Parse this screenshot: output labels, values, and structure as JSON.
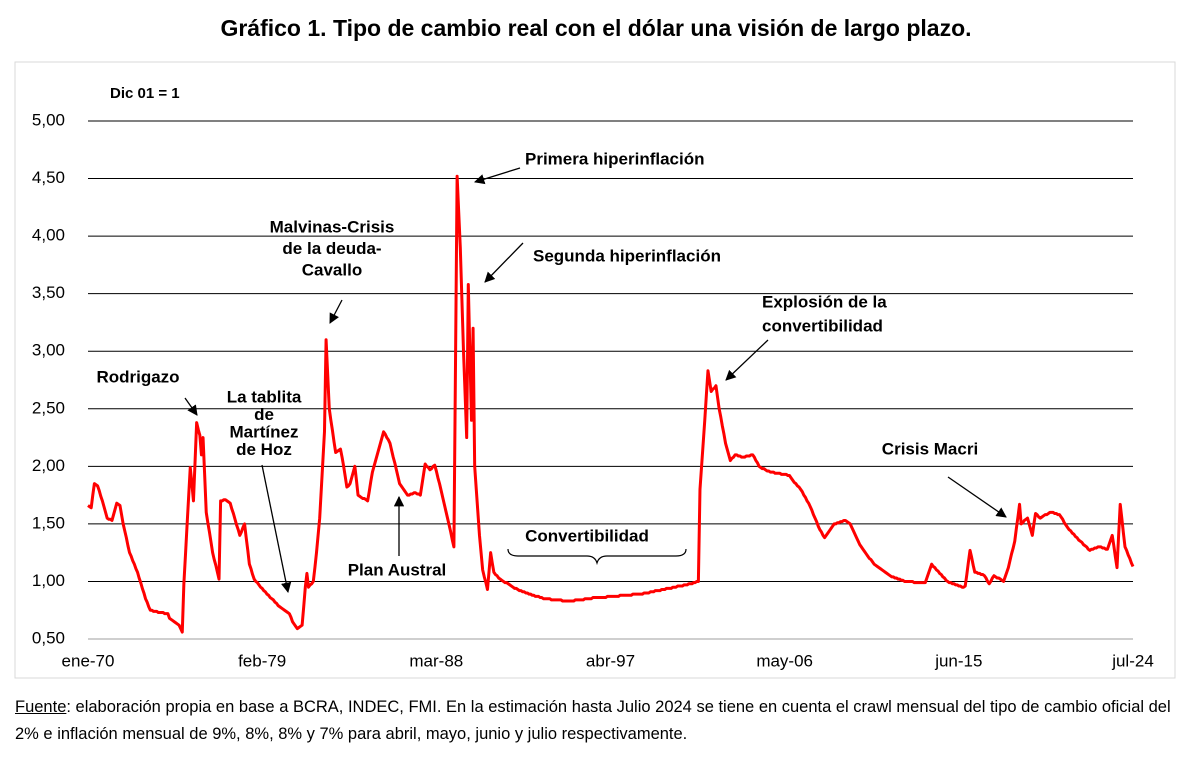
{
  "chart_data": {
    "type": "line",
    "title": "Gráfico 1. Tipo de cambio real con el dólar una visión de largo plazo.",
    "subtitle": "Dic 01 = 1",
    "color": "#ff0000",
    "grid": true,
    "ylim": [
      0.5,
      5.0
    ],
    "yticks": [
      {
        "value": 0.5,
        "label": "0,50"
      },
      {
        "value": 1.0,
        "label": "1,00"
      },
      {
        "value": 1.5,
        "label": "1,50"
      },
      {
        "value": 2.0,
        "label": "2,00"
      },
      {
        "value": 2.5,
        "label": "2,50"
      },
      {
        "value": 3.0,
        "label": "3,00"
      },
      {
        "value": 3.5,
        "label": "3,50"
      },
      {
        "value": 4.0,
        "label": "4,00"
      },
      {
        "value": 4.5,
        "label": "4,50"
      },
      {
        "value": 5.0,
        "label": "5,00"
      }
    ],
    "annotations": [
      [
        "Rodrigazo"
      ],
      [
        "La tablita",
        "de",
        "Martínez",
        "de Hoz"
      ],
      [
        "Malvinas-Crisis",
        "de la deuda-",
        "Cavallo"
      ],
      [
        "Primera hiperinflación"
      ],
      [
        "Segunda hiperinflación"
      ],
      [
        "Explosión de la",
        "convertibilidad"
      ],
      [
        "Plan Austral"
      ],
      [
        "Convertibilidad"
      ],
      [
        "Crisis Macri"
      ]
    ],
    "source_label": "Fuente",
    "source_text": ": elaboración propia en base a BCRA, INDEC, FMI. En la estimación hasta Julio 2024 se tiene en cuenta el crawl mensual del tipo de cambio oficial del 2% e inflación mensual de 9%, 8%, 8% y 7% para abril, mayo, junio y julio respectivamente.",
    "categories": [
      "ene-70",
      null,
      null,
      null,
      null,
      null,
      null,
      null,
      null,
      null,
      null,
      null,
      null,
      null,
      null,
      null,
      null,
      null,
      null,
      null,
      null,
      null,
      null,
      null,
      null,
      null,
      null,
      null,
      null,
      null,
      null,
      null,
      null,
      null,
      null,
      null,
      null,
      null,
      null,
      null,
      null,
      null,
      null,
      null,
      null,
      null,
      null,
      null,
      null,
      null,
      null,
      null,
      null,
      null,
      null,
      null,
      null,
      null,
      null,
      null,
      null,
      null,
      null,
      null,
      null,
      null,
      null,
      null,
      null,
      null,
      null,
      null,
      null,
      null,
      null,
      null,
      null,
      null,
      null,
      null,
      null,
      null,
      null,
      null,
      null,
      null,
      null,
      null,
      null,
      null,
      null,
      null,
      null,
      null,
      null,
      null,
      null,
      null,
      null,
      null,
      null,
      null,
      null,
      null,
      null,
      null,
      null,
      null,
      null,
      "feb-79",
      null,
      null,
      null,
      null,
      null,
      null,
      null,
      null,
      null,
      null,
      null,
      null,
      null,
      null,
      null,
      null,
      null,
      null,
      null,
      null,
      null,
      null,
      null,
      null,
      null,
      null,
      null,
      null,
      null,
      null,
      null,
      null,
      null,
      null,
      null,
      null,
      null,
      null,
      null,
      null,
      null,
      null,
      null,
      null,
      null,
      null,
      null,
      null,
      null,
      null,
      null,
      null,
      null,
      null,
      null,
      null,
      null,
      null,
      null,
      null,
      null,
      null,
      null,
      null,
      null,
      null,
      null,
      null,
      null,
      null,
      null,
      null,
      null,
      null,
      null,
      null,
      null,
      null,
      null,
      null,
      null,
      null,
      null,
      null,
      null,
      null,
      null,
      null,
      null,
      null,
      null,
      null,
      null,
      null,
      null,
      null,
      null,
      null,
      null,
      null,
      null,
      null,
      null,
      null,
      null,
      null,
      null,
      null,
      "mar-88",
      null,
      null,
      null,
      null,
      null,
      null,
      null,
      null,
      null,
      null,
      null,
      null,
      null,
      null,
      null,
      null,
      null,
      null,
      null,
      null,
      null,
      null,
      null,
      null,
      null,
      null,
      null,
      null,
      null,
      null,
      null,
      null,
      null,
      null,
      null,
      null,
      null,
      null,
      null,
      null,
      null,
      null,
      null,
      null,
      null,
      null,
      null,
      null,
      null,
      null,
      null,
      null,
      null,
      null,
      null,
      null,
      null,
      null,
      null,
      null,
      null,
      null,
      null,
      null,
      null,
      null,
      null,
      null,
      null,
      null,
      null,
      null,
      null,
      null,
      null,
      null,
      null,
      null,
      null,
      null,
      null,
      null,
      null,
      null,
      null,
      null,
      null,
      null,
      null,
      null,
      null,
      null,
      null,
      null,
      null,
      null,
      null,
      null,
      null,
      null,
      null,
      null,
      null,
      null,
      null,
      null,
      null,
      null,
      "abr-97",
      null,
      null,
      null,
      null,
      null,
      null,
      null,
      null,
      null,
      null,
      null,
      null,
      null,
      null,
      null,
      null,
      null,
      null,
      null,
      null,
      null,
      null,
      null,
      null,
      null,
      null,
      null,
      null,
      null,
      null,
      null,
      null,
      null,
      null,
      null,
      null,
      null,
      null,
      null,
      null,
      null,
      null,
      null,
      null,
      null,
      null,
      null,
      null,
      null,
      null,
      null,
      null,
      null,
      null,
      null,
      null,
      null,
      null,
      null,
      null,
      null,
      null,
      null,
      null,
      null,
      null,
      null,
      null,
      null,
      null,
      null,
      null,
      null,
      null,
      null,
      null,
      null,
      null,
      null,
      null,
      null,
      null,
      null,
      null,
      null,
      null,
      null,
      null,
      null,
      null,
      null,
      null,
      null,
      null,
      null,
      null,
      null,
      null,
      null,
      null,
      null,
      null,
      null,
      null,
      null,
      null,
      null,
      null,
      "may-06",
      null,
      null,
      null,
      null,
      null,
      null,
      null,
      null,
      null,
      null,
      null,
      null,
      null,
      null,
      null,
      null,
      null,
      null,
      null,
      null,
      null,
      null,
      null,
      null,
      null,
      null,
      null,
      null,
      null,
      null,
      null,
      null,
      null,
      null,
      null,
      null,
      null,
      null,
      null,
      null,
      null,
      null,
      null,
      null,
      null,
      null,
      null,
      null,
      null,
      null,
      null,
      null,
      null,
      null,
      null,
      null,
      null,
      null,
      null,
      null,
      null,
      null,
      null,
      null,
      null,
      null,
      null,
      null,
      null,
      null,
      null,
      null,
      null,
      null,
      null,
      null,
      null,
      null,
      null,
      null,
      null,
      null,
      null,
      null,
      null,
      null,
      null,
      null,
      null,
      null,
      null,
      null,
      null,
      null,
      null,
      null,
      null,
      null,
      null,
      null,
      null,
      null,
      null,
      null,
      null,
      null,
      null,
      null,
      "jun-15",
      null,
      null,
      null,
      null,
      null,
      null,
      null,
      null,
      null,
      null,
      null,
      null,
      null,
      null,
      null,
      null,
      null,
      null,
      null,
      null,
      null,
      null,
      null,
      null,
      null,
      null,
      null,
      null,
      null,
      null,
      null,
      null,
      null,
      null,
      null,
      null,
      null,
      null,
      null,
      null,
      null,
      null,
      null,
      null,
      null,
      null,
      null,
      null,
      null,
      null,
      null,
      null,
      null,
      null,
      null,
      null,
      null,
      null,
      null,
      null,
      null,
      null,
      null,
      null,
      null,
      null,
      null,
      null,
      null,
      null,
      null,
      null,
      null,
      null,
      null,
      null,
      null,
      null,
      null,
      null,
      null,
      null,
      null,
      null,
      null,
      null,
      null,
      null,
      null,
      null,
      null,
      null,
      null,
      null,
      null,
      null,
      null,
      null,
      null,
      null,
      null,
      null,
      null,
      null,
      null,
      null,
      null,
      null,
      "jul-24"
    ],
    "values": [
      1.66,
      1.65,
      1.64,
      1.75,
      1.85,
      1.84,
      1.83,
      1.79,
      1.74,
      1.7,
      1.65,
      1.6,
      1.55,
      1.54,
      1.54,
      1.53,
      1.58,
      1.63,
      1.68,
      1.67,
      1.66,
      1.58,
      1.5,
      1.44,
      1.38,
      1.31,
      1.25,
      1.22,
      1.18,
      1.15,
      1.11,
      1.08,
      1.03,
      0.99,
      0.94,
      0.9,
      0.85,
      0.82,
      0.78,
      0.75,
      0.75,
      0.74,
      0.74,
      0.74,
      0.73,
      0.73,
      0.73,
      0.73,
      0.72,
      0.72,
      0.72,
      0.68,
      0.67,
      0.66,
      0.65,
      0.64,
      0.63,
      0.62,
      0.59,
      0.56,
      0.98,
      1.23,
      1.49,
      1.74,
      1.99,
      1.85,
      1.7,
      2.04,
      2.38,
      2.32,
      2.27,
      2.1,
      2.25,
      1.93,
      1.6,
      1.51,
      1.43,
      1.34,
      1.25,
      1.19,
      1.14,
      1.08,
      1.02,
      1.7,
      1.7,
      1.71,
      1.71,
      1.7,
      1.69,
      1.68,
      1.63,
      1.59,
      1.54,
      1.49,
      1.45,
      1.4,
      1.43,
      1.47,
      1.5,
      1.38,
      1.27,
      1.15,
      1.11,
      1.06,
      1.02,
      1.0,
      0.99,
      0.97,
      0.95,
      0.94,
      0.92,
      0.91,
      0.89,
      0.88,
      0.86,
      0.85,
      0.84,
      0.82,
      0.81,
      0.79,
      0.78,
      0.77,
      0.76,
      0.75,
      0.74,
      0.73,
      0.72,
      0.69,
      0.65,
      0.63,
      0.61,
      0.59,
      0.6,
      0.61,
      0.62,
      0.78,
      0.95,
      1.07,
      0.95,
      0.97,
      0.98,
      1.0,
      1.12,
      1.25,
      1.4,
      1.55,
      1.8,
      2.05,
      2.3,
      3.1,
      2.8,
      2.5,
      2.4,
      2.31,
      2.21,
      2.12,
      2.13,
      2.14,
      2.15,
      2.08,
      2.0,
      1.91,
      1.82,
      1.83,
      1.85,
      1.9,
      1.95,
      2.0,
      1.88,
      1.75,
      1.74,
      1.73,
      1.72,
      1.72,
      1.71,
      1.7,
      1.78,
      1.87,
      1.95,
      2.0,
      2.05,
      2.1,
      2.15,
      2.2,
      2.25,
      2.3,
      2.28,
      2.25,
      2.23,
      2.2,
      2.14,
      2.08,
      2.03,
      1.97,
      1.91,
      1.85,
      1.83,
      1.81,
      1.79,
      1.77,
      1.75,
      1.75,
      1.76,
      1.76,
      1.77,
      1.77,
      1.76,
      1.76,
      1.75,
      1.84,
      1.93,
      2.02,
      2.0,
      1.99,
      1.97,
      1.98,
      2.0,
      2.01,
      1.96,
      1.9,
      1.85,
      1.79,
      1.73,
      1.67,
      1.61,
      1.55,
      1.49,
      1.43,
      1.36,
      1.3,
      2.9,
      4.52,
      4.21,
      3.9,
      3.45,
      3.0,
      2.63,
      2.25,
      3.58,
      2.99,
      2.4,
      3.2,
      2.0,
      1.8,
      1.6,
      1.4,
      1.25,
      1.1,
      1.04,
      0.99,
      0.93,
      1.09,
      1.25,
      1.16,
      1.08,
      1.06,
      1.05,
      1.03,
      1.02,
      1.01,
      1.0,
      0.99,
      0.99,
      0.98,
      0.97,
      0.96,
      0.95,
      0.94,
      0.94,
      0.93,
      0.92,
      0.92,
      0.91,
      0.91,
      0.9,
      0.9,
      0.89,
      0.89,
      0.88,
      0.88,
      0.87,
      0.87,
      0.87,
      0.86,
      0.86,
      0.85,
      0.85,
      0.85,
      0.85,
      0.85,
      0.84,
      0.84,
      0.84,
      0.84,
      0.84,
      0.84,
      0.84,
      0.83,
      0.83,
      0.83,
      0.83,
      0.83,
      0.83,
      0.83,
      0.83,
      0.84,
      0.84,
      0.84,
      0.84,
      0.84,
      0.84,
      0.85,
      0.85,
      0.85,
      0.85,
      0.85,
      0.86,
      0.86,
      0.86,
      0.86,
      0.86,
      0.86,
      0.86,
      0.86,
      0.86,
      0.87,
      0.87,
      0.87,
      0.87,
      0.87,
      0.87,
      0.87,
      0.87,
      0.88,
      0.88,
      0.88,
      0.88,
      0.88,
      0.88,
      0.88,
      0.88,
      0.89,
      0.89,
      0.89,
      0.89,
      0.89,
      0.89,
      0.89,
      0.9,
      0.9,
      0.9,
      0.9,
      0.91,
      0.91,
      0.91,
      0.92,
      0.92,
      0.92,
      0.92,
      0.93,
      0.93,
      0.93,
      0.94,
      0.94,
      0.94,
      0.94,
      0.95,
      0.95,
      0.95,
      0.96,
      0.96,
      0.96,
      0.96,
      0.97,
      0.97,
      0.97,
      0.98,
      0.98,
      0.98,
      0.99,
      0.99,
      1.0,
      1.0,
      1.8,
      2.0,
      2.2,
      2.4,
      2.62,
      2.83,
      2.74,
      2.65,
      2.67,
      2.68,
      2.7,
      2.6,
      2.5,
      2.43,
      2.35,
      2.28,
      2.2,
      2.15,
      2.1,
      2.05,
      2.07,
      2.08,
      2.1,
      2.1,
      2.09,
      2.09,
      2.08,
      2.08,
      2.08,
      2.09,
      2.09,
      2.09,
      2.1,
      2.1,
      2.08,
      2.05,
      2.03,
      2.0,
      1.99,
      1.98,
      1.98,
      1.97,
      1.96,
      1.96,
      1.95,
      1.95,
      1.95,
      1.94,
      1.94,
      1.94,
      1.94,
      1.93,
      1.93,
      1.93,
      1.93,
      1.92,
      1.92,
      1.9,
      1.88,
      1.86,
      1.85,
      1.83,
      1.82,
      1.8,
      1.78,
      1.75,
      1.73,
      1.7,
      1.68,
      1.65,
      1.62,
      1.58,
      1.55,
      1.52,
      1.48,
      1.45,
      1.43,
      1.4,
      1.38,
      1.4,
      1.42,
      1.44,
      1.46,
      1.48,
      1.5,
      1.5,
      1.51,
      1.51,
      1.52,
      1.52,
      1.53,
      1.53,
      1.52,
      1.51,
      1.5,
      1.47,
      1.44,
      1.41,
      1.38,
      1.35,
      1.32,
      1.3,
      1.28,
      1.26,
      1.24,
      1.22,
      1.2,
      1.19,
      1.17,
      1.15,
      1.14,
      1.13,
      1.12,
      1.11,
      1.1,
      1.09,
      1.08,
      1.07,
      1.06,
      1.05,
      1.04,
      1.04,
      1.03,
      1.03,
      1.02,
      1.02,
      1.01,
      1.01,
      1.0,
      1.0,
      1.0,
      1.0,
      1.0,
      1.0,
      0.99,
      0.99,
      0.99,
      0.99,
      0.99,
      0.99,
      0.99,
      0.99,
      1.03,
      1.07,
      1.11,
      1.15,
      1.13,
      1.12,
      1.1,
      1.09,
      1.07,
      1.06,
      1.04,
      1.03,
      1.01,
      1.0,
      0.99,
      0.99,
      0.98,
      0.98,
      0.97,
      0.97,
      0.96,
      0.96,
      0.95,
      0.95,
      0.96,
      1.06,
      1.17,
      1.27,
      1.21,
      1.14,
      1.08,
      1.08,
      1.07,
      1.07,
      1.06,
      1.06,
      1.05,
      1.03,
      1.0,
      0.98,
      1.0,
      1.03,
      1.05,
      1.04,
      1.03,
      1.03,
      1.02,
      1.01,
      1.0,
      1.04,
      1.08,
      1.12,
      1.18,
      1.24,
      1.29,
      1.35,
      1.46,
      1.56,
      1.67,
      1.5,
      1.51,
      1.53,
      1.54,
      1.55,
      1.5,
      1.45,
      1.4,
      1.5,
      1.59,
      1.58,
      1.56,
      1.55,
      1.56,
      1.57,
      1.58,
      1.58,
      1.59,
      1.6,
      1.6,
      1.6,
      1.59,
      1.59,
      1.58,
      1.58,
      1.56,
      1.54,
      1.51,
      1.49,
      1.47,
      1.45,
      1.44,
      1.42,
      1.41,
      1.39,
      1.38,
      1.36,
      1.35,
      1.34,
      1.32,
      1.31,
      1.3,
      1.28,
      1.27,
      1.28,
      1.28,
      1.29,
      1.29,
      1.3,
      1.3,
      1.3,
      1.29,
      1.29,
      1.28,
      1.28,
      1.32,
      1.36,
      1.4,
      1.31,
      1.21,
      1.12,
      1.4,
      1.67,
      1.55,
      1.42,
      1.3,
      1.27,
      1.23,
      1.2,
      1.16,
      1.13
    ]
  }
}
